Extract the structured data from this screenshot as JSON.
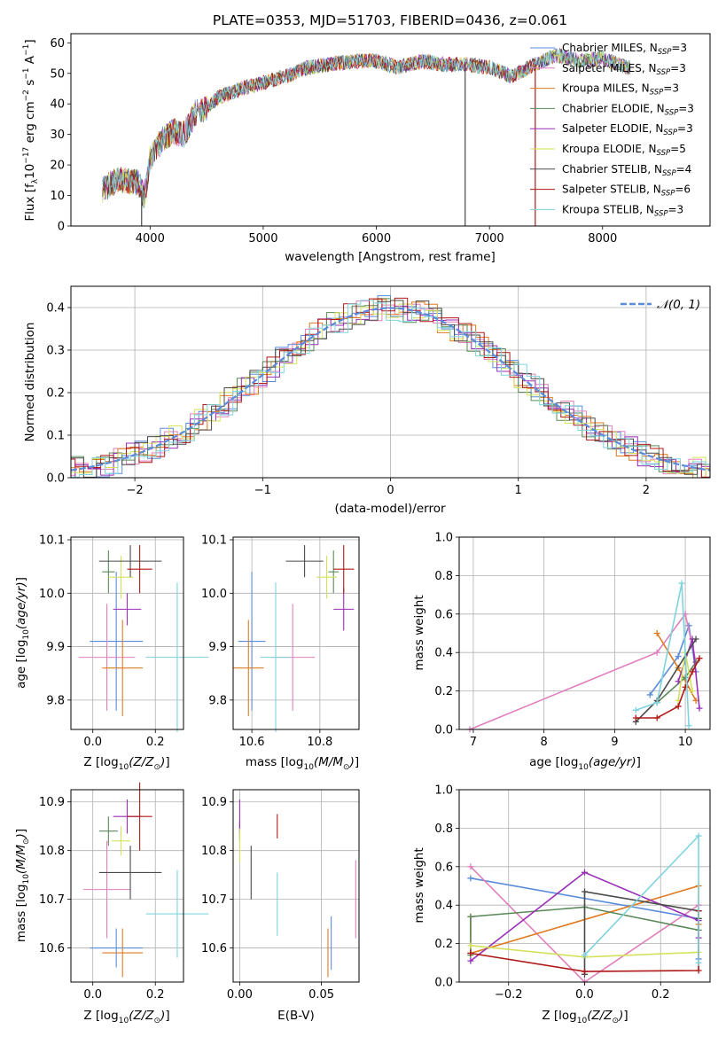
{
  "figure_title": "PLATE=0353, MJD=51703, FIBERID=0436, z=0.061",
  "colors": {
    "Chabrier MILES": "#5b8cdc",
    "Salpeter MILES": "#e07fbd",
    "Kroupa MILES": "#e07a1f",
    "Chabrier ELODIE": "#5a8a5a",
    "Salpeter ELODIE": "#9a2fb8",
    "Kroupa ELODIE": "#d4e25a",
    "Chabrier STELIB": "#4a4a4a",
    "Salpeter STELIB": "#b01818",
    "Kroupa STELIB": "#7ed3de",
    "normal_curve": "#5b8cdc"
  },
  "chart_data": [
    {
      "id": "spectrum",
      "type": "line",
      "title": "PLATE=0353, MJD=51703, FIBERID=0436, z=0.061",
      "xlabel": "wavelength [Angstrom, rest frame]",
      "xlim": [
        3300,
        8950
      ],
      "ylim": [
        0,
        63
      ],
      "xticks": [
        4000,
        5000,
        6000,
        7000,
        8000
      ],
      "yticks": [
        0,
        10,
        20,
        30,
        40,
        50,
        60
      ],
      "grid": false,
      "legend_placement": "upper right",
      "series": [
        {
          "name": "Chabrier MILES, N_SSP=3",
          "legend_prefix": "Chabrier MILES, N",
          "legend_sub": "SSP",
          "legend_suffix": "=3"
        },
        {
          "name": "Salpeter MILES, N_SSP=3",
          "legend_prefix": "Salpeter MILES, N",
          "legend_sub": "SSP",
          "legend_suffix": "=3"
        },
        {
          "name": "Kroupa MILES, N_SSP=3",
          "legend_prefix": "Kroupa MILES, N",
          "legend_sub": "SSP",
          "legend_suffix": "=3"
        },
        {
          "name": "Chabrier ELODIE, N_SSP=3",
          "legend_prefix": "Chabrier ELODIE, N",
          "legend_sub": "SSP",
          "legend_suffix": "=3"
        },
        {
          "name": "Salpeter ELODIE, N_SSP=3",
          "legend_prefix": "Salpeter ELODIE, N",
          "legend_sub": "SSP",
          "legend_suffix": "=3"
        },
        {
          "name": "Kroupa ELODIE, N_SSP=5",
          "legend_prefix": "Kroupa ELODIE, N",
          "legend_sub": "SSP",
          "legend_suffix": "=5"
        },
        {
          "name": "Chabrier STELIB, N_SSP=4",
          "legend_prefix": "Chabrier STELIB, N",
          "legend_sub": "SSP",
          "legend_suffix": "=4"
        },
        {
          "name": "Salpeter STELIB, N_SSP=6",
          "legend_prefix": "Salpeter STELIB, N",
          "legend_sub": "SSP",
          "legend_suffix": "=6"
        },
        {
          "name": "Kroupa STELIB, N_SSP=3",
          "legend_prefix": "Kroupa STELIB, N",
          "legend_sub": "SSP",
          "legend_suffix": "=3"
        }
      ],
      "continuum": {
        "wavelength": [
          3580,
          3700,
          3800,
          3900,
          3950,
          4000,
          4100,
          4200,
          4300,
          4400,
          4500,
          4600,
          4800,
          5000,
          5200,
          5400,
          5600,
          5800,
          6000,
          6200,
          6400,
          6600,
          6800,
          7000,
          7200,
          7400,
          7600,
          7800,
          8000,
          8200,
          8500
        ],
        "flux": [
          12,
          15,
          15,
          14,
          9,
          22,
          28,
          31,
          30,
          37,
          39,
          42,
          45,
          47,
          49,
          52,
          53,
          54,
          54,
          52,
          54,
          53,
          53,
          52,
          49,
          53,
          56,
          54,
          55,
          52,
          51
        ]
      }
    },
    {
      "id": "residuals",
      "type": "line",
      "xlabel": "(data-model)/error",
      "ylabel": "Normed distribution",
      "xlim": [
        -2.5,
        2.5
      ],
      "ylim": [
        0,
        0.45
      ],
      "xticks": [
        -2,
        -1,
        0,
        1,
        2
      ],
      "yticks": [
        0.0,
        0.1,
        0.2,
        0.3,
        0.4
      ],
      "grid": true,
      "legend_placement": "upper right",
      "legend": "𝒩(0, 1)",
      "bin_width": 0.1
    },
    {
      "id": "age_vs_Z",
      "type": "scatter",
      "xlabel": "Z",
      "ylabel": "age",
      "xlim": [
        -0.07,
        0.29
      ],
      "ylim": [
        9.745,
        10.105
      ],
      "xticks": [
        0.0,
        0.2
      ],
      "yticks": [
        9.8,
        9.9,
        10.0,
        10.1
      ],
      "grid": true,
      "points": [
        {
          "series": "Chabrier MILES",
          "x": 0.075,
          "y": 9.91,
          "xerr": 0.085,
          "yerr": 0.13
        },
        {
          "series": "Salpeter MILES",
          "x": 0.045,
          "y": 9.88,
          "xerr": 0.09,
          "yerr": 0.1
        },
        {
          "series": "Kroupa MILES",
          "x": 0.095,
          "y": 9.86,
          "xerr": 0.065,
          "yerr": 0.09
        },
        {
          "series": "Chabrier ELODIE",
          "x": 0.05,
          "y": 10.04,
          "xerr": 0.02,
          "yerr": 0.04
        },
        {
          "series": "Salpeter ELODIE",
          "x": 0.11,
          "y": 9.97,
          "xerr": 0.045,
          "yerr": 0.03
        },
        {
          "series": "Kroupa ELODIE",
          "x": 0.09,
          "y": 10.03,
          "xerr": 0.04,
          "yerr": 0.04
        },
        {
          "series": "Chabrier STELIB",
          "x": 0.12,
          "y": 10.06,
          "xerr": 0.1,
          "yerr": 0.03
        },
        {
          "series": "Salpeter STELIB",
          "x": 0.15,
          "y": 10.045,
          "xerr": 0.04,
          "yerr": 0.045
        },
        {
          "series": "Kroupa STELIB",
          "x": 0.27,
          "y": 9.88,
          "xerr": 0.1,
          "yerr": 0.14
        }
      ]
    },
    {
      "id": "age_vs_mass",
      "type": "scatter",
      "xlabel": "mass",
      "ylabel": "",
      "xlim": [
        10.545,
        10.915
      ],
      "ylim": [
        9.745,
        10.105
      ],
      "xticks": [
        10.6,
        10.8
      ],
      "yticks": [
        9.8,
        9.9,
        10.0,
        10.1
      ],
      "grid": true,
      "points": [
        {
          "series": "Chabrier MILES",
          "x": 10.6,
          "y": 9.91,
          "xerr": 0.04,
          "yerr": 0.13
        },
        {
          "series": "Salpeter MILES",
          "x": 10.72,
          "y": 9.88,
          "xerr": 0.065,
          "yerr": 0.1
        },
        {
          "series": "Kroupa MILES",
          "x": 10.59,
          "y": 9.86,
          "xerr": 0.045,
          "yerr": 0.09
        },
        {
          "series": "Chabrier ELODIE",
          "x": 10.84,
          "y": 10.04,
          "xerr": 0.015,
          "yerr": 0.04
        },
        {
          "series": "Salpeter ELODIE",
          "x": 10.87,
          "y": 9.97,
          "xerr": 0.03,
          "yerr": 0.04
        },
        {
          "series": "Kroupa ELODIE",
          "x": 10.82,
          "y": 10.03,
          "xerr": 0.03,
          "yerr": 0.04
        },
        {
          "series": "Chabrier STELIB",
          "x": 10.755,
          "y": 10.06,
          "xerr": 0.055,
          "yerr": 0.03
        },
        {
          "series": "Salpeter STELIB",
          "x": 10.87,
          "y": 10.045,
          "xerr": 0.03,
          "yerr": 0.045
        },
        {
          "series": "Kroupa STELIB",
          "x": 10.67,
          "y": 9.88,
          "xerr": 0.045,
          "yerr": 0.14
        }
      ]
    },
    {
      "id": "weight_vs_age",
      "type": "line",
      "xlabel": "age",
      "ylabel": "mass weight",
      "xlim": [
        6.8,
        10.35
      ],
      "ylim": [
        0,
        1.0
      ],
      "xticks": [
        7,
        8,
        9,
        10
      ],
      "yticks": [
        0.0,
        0.2,
        0.4,
        0.6,
        0.8,
        1.0
      ],
      "grid": true,
      "series": [
        {
          "name": "Chabrier MILES",
          "x": [
            9.5,
            9.9,
            10.05,
            10.15
          ],
          "y": [
            0.18,
            0.38,
            0.54,
            0.3
          ]
        },
        {
          "name": "Salpeter MILES",
          "x": [
            6.95,
            9.6,
            10.0,
            10.15
          ],
          "y": [
            0.0,
            0.4,
            0.6,
            0.35
          ]
        },
        {
          "name": "Kroupa MILES",
          "x": [
            9.6,
            9.9,
            10.15
          ],
          "y": [
            0.5,
            0.32,
            0.15
          ]
        },
        {
          "name": "Chabrier ELODIE",
          "x": [
            9.6,
            10.0,
            10.15
          ],
          "y": [
            0.14,
            0.27,
            0.35
          ]
        },
        {
          "name": "Salpeter ELODIE",
          "x": [
            9.9,
            10.1,
            10.2
          ],
          "y": [
            0.25,
            0.47,
            0.11
          ]
        },
        {
          "name": "Kroupa ELODIE",
          "x": [
            9.9,
            10.0,
            10.1
          ],
          "y": [
            0.15,
            0.4,
            0.2
          ]
        },
        {
          "name": "Chabrier STELIB",
          "x": [
            9.3,
            9.6,
            10.15
          ],
          "y": [
            0.04,
            0.15,
            0.47
          ]
        },
        {
          "name": "Salpeter STELIB",
          "x": [
            9.3,
            9.6,
            9.9,
            10.0,
            10.1,
            10.2
          ],
          "y": [
            0.06,
            0.06,
            0.12,
            0.22,
            0.3,
            0.37
          ]
        },
        {
          "name": "Kroupa STELIB",
          "x": [
            9.3,
            9.6,
            9.95,
            10.05
          ],
          "y": [
            0.1,
            0.14,
            0.76,
            0.02
          ]
        }
      ]
    },
    {
      "id": "mass_vs_Z",
      "type": "scatter",
      "xlabel": "Z",
      "ylabel": "mass",
      "xlim": [
        -0.07,
        0.29
      ],
      "ylim": [
        10.53,
        10.925
      ],
      "xticks": [
        0.0,
        0.2
      ],
      "yticks": [
        10.6,
        10.7,
        10.8,
        10.9
      ],
      "grid": true,
      "points": [
        {
          "series": "Chabrier MILES",
          "x": 0.075,
          "y": 10.6,
          "xerr": 0.085,
          "yerr": 0.04
        },
        {
          "series": "Salpeter MILES",
          "x": 0.045,
          "y": 10.72,
          "xerr": 0.075,
          "yerr": 0.1
        },
        {
          "series": "Kroupa MILES",
          "x": 0.095,
          "y": 10.59,
          "xerr": 0.065,
          "yerr": 0.05
        },
        {
          "series": "Chabrier ELODIE",
          "x": 0.05,
          "y": 10.84,
          "xerr": 0.03,
          "yerr": 0.03
        },
        {
          "series": "Salpeter ELODIE",
          "x": 0.11,
          "y": 10.87,
          "xerr": 0.045,
          "yerr": 0.035
        },
        {
          "series": "Kroupa ELODIE",
          "x": 0.09,
          "y": 10.82,
          "xerr": 0.03,
          "yerr": 0.03
        },
        {
          "series": "Chabrier STELIB",
          "x": 0.12,
          "y": 10.755,
          "xerr": 0.1,
          "yerr": 0.055
        },
        {
          "series": "Salpeter STELIB",
          "x": 0.15,
          "y": 10.87,
          "xerr": 0.04,
          "yerr": 0.07
        },
        {
          "series": "Kroupa STELIB",
          "x": 0.27,
          "y": 10.67,
          "xerr": 0.1,
          "yerr": 0.09
        }
      ]
    },
    {
      "id": "mass_vs_ebv",
      "type": "scatter",
      "xlabel": "E(B-V)",
      "ylabel": "",
      "xlim": [
        -0.004,
        0.073
      ],
      "ylim": [
        10.53,
        10.925
      ],
      "xticks": [
        0.0,
        0.05
      ],
      "yticks": [
        10.6,
        10.7,
        10.8,
        10.9
      ],
      "grid": true,
      "points": [
        {
          "series": "Chabrier MILES",
          "x": 0.056,
          "y": 10.61,
          "yerr": 0.055
        },
        {
          "series": "Salpeter MILES",
          "x": 0.071,
          "y": 10.7,
          "yerr": 0.08
        },
        {
          "series": "Kroupa MILES",
          "x": 0.054,
          "y": 10.59,
          "yerr": 0.05
        },
        {
          "series": "Chabrier ELODIE",
          "x": 0.0,
          "y": 10.84,
          "yerr": 0.02
        },
        {
          "series": "Salpeter ELODIE",
          "x": 0.0,
          "y": 10.87,
          "yerr": 0.035
        },
        {
          "series": "Kroupa ELODIE",
          "x": 0.0,
          "y": 10.81,
          "yerr": 0.035
        },
        {
          "series": "Chabrier STELIB",
          "x": 0.007,
          "y": 10.755,
          "yerr": 0.055
        },
        {
          "series": "Salpeter STELIB",
          "x": 0.023,
          "y": 10.85,
          "yerr": 0.025
        },
        {
          "series": "Kroupa STELIB",
          "x": 0.023,
          "y": 10.69,
          "yerr": 0.065
        }
      ]
    },
    {
      "id": "weight_vs_Z",
      "type": "line",
      "xlabel": "Z",
      "ylabel": "mass weight",
      "xlim": [
        -0.33,
        0.33
      ],
      "ylim": [
        0,
        1.0
      ],
      "xticks": [
        -0.2,
        0.0,
        0.2
      ],
      "yticks": [
        0.0,
        0.2,
        0.4,
        0.6,
        0.8,
        1.0
      ],
      "grid": true,
      "series": [
        {
          "name": "Chabrier MILES",
          "x": [
            -0.3,
            0.3,
            0.3
          ],
          "y": [
            0.54,
            0.33,
            0.12
          ]
        },
        {
          "name": "Salpeter MILES",
          "x": [
            -0.3,
            0.0,
            0.3
          ],
          "y": [
            0.6,
            0.0,
            0.4
          ]
        },
        {
          "name": "Kroupa MILES",
          "x": [
            -0.3,
            -0.3,
            0.3,
            0.3
          ],
          "y": [
            0.34,
            0.15,
            0.5,
            0.3
          ]
        },
        {
          "name": "Chabrier ELODIE",
          "x": [
            -0.3,
            -0.3,
            0.0,
            0.3
          ],
          "y": [
            0.14,
            0.34,
            0.39,
            0.27
          ]
        },
        {
          "name": "Salpeter ELODIE",
          "x": [
            -0.3,
            0.0,
            0.3,
            0.3
          ],
          "y": [
            0.11,
            0.57,
            0.32,
            0.23
          ]
        },
        {
          "name": "Kroupa ELODIE",
          "x": [
            -0.3,
            0.0,
            0.3
          ],
          "y": [
            0.19,
            0.13,
            0.155
          ]
        },
        {
          "name": "Chabrier STELIB",
          "x": [
            0.0,
            0.0,
            0.3,
            0.3
          ],
          "y": [
            0.04,
            0.47,
            0.37,
            0.33
          ]
        },
        {
          "name": "Salpeter STELIB",
          "x": [
            -0.3,
            0.0,
            0.3,
            0.3
          ],
          "y": [
            0.15,
            0.055,
            0.06,
            0.37
          ]
        },
        {
          "name": "Kroupa STELIB",
          "x": [
            0.0,
            0.3,
            0.3
          ],
          "y": [
            0.14,
            0.76,
            0.1
          ]
        }
      ]
    }
  ]
}
